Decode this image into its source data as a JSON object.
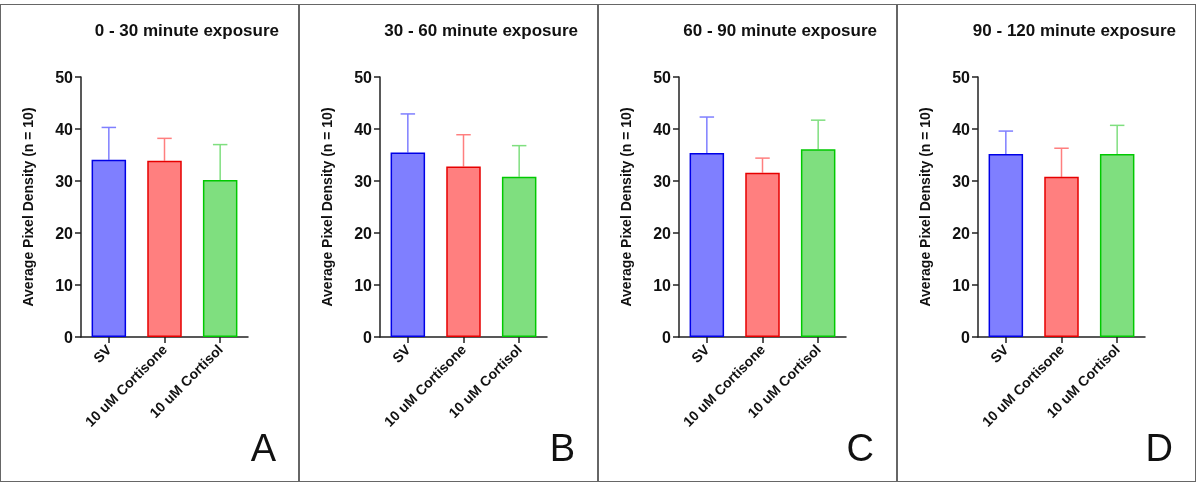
{
  "chart_data": [
    {
      "type": "bar",
      "title": "0 - 30 minute exposure",
      "ylabel": "Average Pixel Density (n = 10)",
      "categories": [
        "SV",
        "10 uM Cortisone",
        "10 uM Cortisol"
      ],
      "values": [
        34.1,
        33.9,
        30.2
      ],
      "errors": [
        [
          34.1,
          40.3
        ],
        [
          33.9,
          38.2
        ],
        [
          30.2,
          37.0
        ]
      ],
      "colors": [
        "#7f7fff",
        "#ff7f7f",
        "#7fdf7f"
      ],
      "ylim": [
        0,
        50
      ],
      "yticks": [
        0,
        10,
        20,
        30,
        40,
        50
      ],
      "annotations": [
        "A"
      ]
    },
    {
      "type": "bar",
      "title": "30 - 60 minute exposure",
      "ylabel": "Average Pixel Density (n = 10)",
      "categories": [
        "SV",
        "10 uM Cortisone",
        "10 uM Cortisol"
      ],
      "values": [
        35.5,
        32.8,
        30.8
      ],
      "errors": [
        [
          35.5,
          42.9
        ],
        [
          32.8,
          38.9
        ],
        [
          30.8,
          36.8
        ]
      ],
      "colors": [
        "#7f7fff",
        "#ff7f7f",
        "#7fdf7f"
      ],
      "ylim": [
        0,
        50
      ],
      "yticks": [
        0,
        10,
        20,
        30,
        40,
        50
      ],
      "annotations": [
        "B"
      ]
    },
    {
      "type": "bar",
      "title": "60 - 90 minute exposure",
      "ylabel": "Average Pixel Density (n = 10)",
      "categories": [
        "SV",
        "10 uM Cortisone",
        "10 uM Cortisol"
      ],
      "values": [
        35.4,
        31.6,
        36.1
      ],
      "errors": [
        [
          35.4,
          42.3
        ],
        [
          31.6,
          34.4
        ],
        [
          36.1,
          41.7
        ]
      ],
      "colors": [
        "#7f7fff",
        "#ff7f7f",
        "#7fdf7f"
      ],
      "ylim": [
        0,
        50
      ],
      "yticks": [
        0,
        10,
        20,
        30,
        40,
        50
      ],
      "annotations": [
        "C"
      ]
    },
    {
      "type": "bar",
      "title": "90 - 120 minute exposure",
      "ylabel": "Average Pixel Density (n = 10)",
      "categories": [
        "SV",
        "10 uM Cortisone",
        "10 uM Cortisol"
      ],
      "values": [
        35.2,
        30.8,
        35.2
      ],
      "errors": [
        [
          35.2,
          39.6
        ],
        [
          30.8,
          36.3
        ],
        [
          35.2,
          40.7
        ]
      ],
      "colors": [
        "#7f7fff",
        "#ff7f7f",
        "#7fdf7f"
      ],
      "ylim": [
        0,
        50
      ],
      "yticks": [
        0,
        10,
        20,
        30,
        40,
        50
      ],
      "annotations": [
        "D"
      ]
    }
  ]
}
